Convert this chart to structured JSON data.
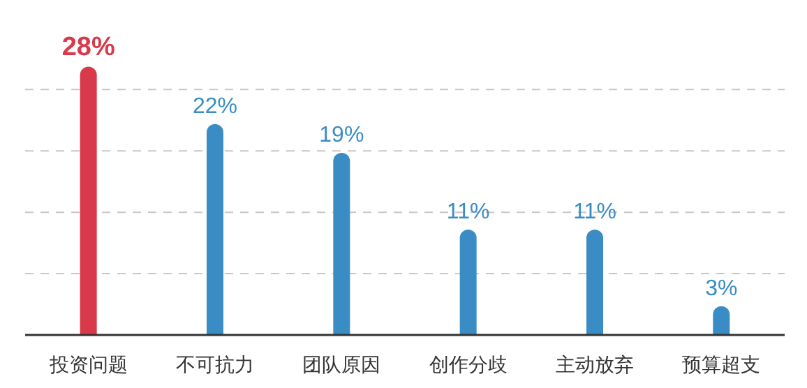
{
  "chart_data": {
    "type": "bar",
    "categories": [
      "投资问题",
      "不可抗力",
      "团队原因",
      "创作分歧",
      "主动放弃",
      "预算超支"
    ],
    "values": [
      28,
      22,
      19,
      11,
      11,
      3
    ],
    "colors": [
      "#d93a4a",
      "#3a8cc4",
      "#3a8cc4",
      "#3a8cc4",
      "#3a8cc4",
      "#3a8cc4"
    ],
    "value_labels": [
      "28%",
      "22%",
      "19%",
      "11%",
      "11%",
      "3%"
    ],
    "yticks": [
      {
        "value": 6.4,
        "label": null
      },
      {
        "value": 12.8,
        "label": null
      },
      {
        "value": 19.2,
        "label": null
      },
      {
        "value": 25.6,
        "label": null
      }
    ],
    "grid": "y",
    "tick_labels": "x"
  }
}
